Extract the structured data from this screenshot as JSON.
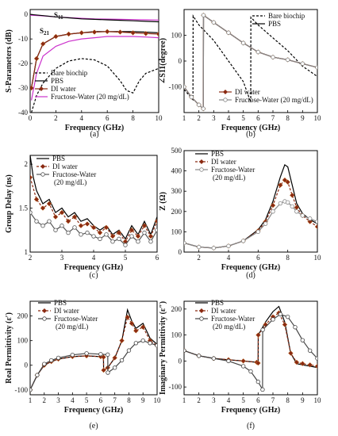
{
  "chart_data": [
    {
      "id": "a",
      "type": "line",
      "caption": "(a)",
      "xlabel": "Frequency (GHz)",
      "ylabel": "S-Parameters (dB)",
      "xlim": [
        0,
        10
      ],
      "ylim": [
        -40,
        2
      ],
      "xticks": [
        0,
        2,
        4,
        6,
        8,
        10
      ],
      "yticks": [
        0,
        -10,
        -20,
        -30,
        -40
      ],
      "annotations": [
        "S",
        "11",
        "S",
        "21"
      ],
      "series": [
        {
          "name": "Bare biochip",
          "color": "#000000",
          "dash": "3,2",
          "marker": "none",
          "x": [
            0.1,
            0.5,
            1,
            2,
            3,
            4,
            5,
            6,
            7,
            7.5,
            8,
            8.5,
            9,
            10
          ],
          "y": [
            -40,
            -33,
            -28,
            -22,
            -19,
            -18,
            -18.5,
            -21,
            -27,
            -31,
            -32,
            -27,
            -24,
            -22
          ]
        },
        {
          "name": "PBS",
          "color": "#000000",
          "dash": "",
          "marker": "none",
          "x": [
            0.1,
            0.5,
            1,
            2,
            3,
            4,
            5,
            6,
            7,
            8,
            9,
            10
          ],
          "y": [
            -30,
            -18,
            -12,
            -9,
            -8,
            -7.5,
            -7,
            -7,
            -7,
            -7,
            -7.2,
            -7.5
          ]
        },
        {
          "name": "DI water",
          "color": "#8b2a12",
          "dash": "",
          "marker": "diamond",
          "x": [
            0.1,
            0.5,
            1,
            2,
            3,
            4,
            5,
            6,
            7,
            8,
            9,
            10
          ],
          "y": [
            -30,
            -18,
            -12,
            -9,
            -8,
            -7.5,
            -7.2,
            -7,
            -7.2,
            -7.5,
            -7.8,
            -8
          ]
        },
        {
          "name": "Fructose-Water (20 mg/dL)",
          "color": "#cc33cc",
          "dash": "",
          "marker": "none",
          "x": [
            0.1,
            0.5,
            1,
            2,
            3,
            4,
            5,
            6,
            7,
            8,
            9,
            10
          ],
          "y": [
            -35,
            -24,
            -17,
            -13,
            -11,
            -10,
            -9.5,
            -9,
            -9,
            -9,
            -9.2,
            -9.5
          ]
        },
        {
          "name": "",
          "color": "#cc33cc",
          "dash": "",
          "marker": "none",
          "x": [
            0,
            1,
            2,
            3,
            4,
            5,
            6,
            7,
            8,
            9,
            10
          ],
          "y": [
            -0.3,
            -0.6,
            -1,
            -1.3,
            -1.6,
            -1.8,
            -1.9,
            -2,
            -2.1,
            -2.2,
            -2.3
          ]
        },
        {
          "name": "",
          "color": "#000000",
          "dash": "",
          "marker": "none",
          "x": [
            0,
            1,
            2,
            3,
            4,
            5,
            6,
            7,
            8,
            9,
            10
          ],
          "y": [
            0,
            -0.5,
            -1,
            -1.4,
            -1.8,
            -2,
            -2.2,
            -2.4,
            -2.6,
            -2.8,
            -3
          ]
        }
      ]
    },
    {
      "id": "b",
      "type": "line",
      "caption": "(b)",
      "xlabel": "Frequency (GHz)",
      "ylabel": "∠S11(degree)",
      "xlim": [
        1,
        10
      ],
      "ylim": [
        -200,
        200
      ],
      "xticks": [
        1,
        2,
        3,
        4,
        5,
        6,
        7,
        8,
        9,
        10
      ],
      "yticks": [
        -100,
        0,
        100
      ],
      "series": [
        {
          "name": "Bare biochip",
          "color": "#000000",
          "dash": "3,2",
          "marker": "none",
          "x": [
            1,
            1.6,
            1.61,
            2,
            3,
            4,
            5,
            5.5,
            5.51,
            6,
            7,
            8,
            9,
            10
          ],
          "y": [
            -110,
            -150,
            175,
            140,
            80,
            0,
            -80,
            -160,
            170,
            140,
            90,
            40,
            -20,
            -60
          ]
        },
        {
          "name": "PBS",
          "color": "#000000",
          "dash": "",
          "marker": "none",
          "x": [
            1,
            1.5,
            2,
            2.3,
            2.31,
            3,
            4,
            5,
            6,
            7,
            8,
            9,
            10
          ],
          "y": [
            -100,
            -140,
            -170,
            -185,
            178,
            150,
            110,
            70,
            35,
            15,
            5,
            -10,
            -25
          ]
        },
        {
          "name": "DI water",
          "color": "#8b2a12",
          "dash": "",
          "marker": "diamond",
          "x": [
            1,
            1.5,
            2,
            2.3,
            2.31,
            3,
            4,
            5,
            6,
            7,
            8,
            9,
            10
          ],
          "y": [
            -100,
            -140,
            -170,
            -185,
            178,
            150,
            110,
            70,
            35,
            15,
            5,
            -10,
            -25
          ]
        },
        {
          "name": "Fructose-Water (20 mg/dL)",
          "color": "#888888",
          "dash": "",
          "marker": "circle",
          "x": [
            1,
            1.5,
            2,
            2.3,
            2.31,
            3,
            4,
            5,
            6,
            7,
            8,
            9,
            10
          ],
          "y": [
            -100,
            -140,
            -170,
            -185,
            178,
            150,
            110,
            70,
            35,
            15,
            5,
            -10,
            -25
          ]
        }
      ]
    },
    {
      "id": "c",
      "type": "line",
      "caption": "(c)",
      "xlabel": "Frequency (GHz)",
      "ylabel": "Group Delay (ns)",
      "xlim": [
        2,
        6
      ],
      "ylim": [
        1.0,
        2.1
      ],
      "xticks": [
        2,
        3,
        4,
        5,
        6
      ],
      "yticks": [
        1.0,
        1.5,
        2.0
      ],
      "series": [
        {
          "name": "PBS",
          "color": "#000000",
          "dash": "",
          "marker": "none",
          "x": [
            2,
            2.1,
            2.2,
            2.4,
            2.6,
            2.8,
            3,
            3.2,
            3.4,
            3.6,
            3.8,
            4,
            4.2,
            4.4,
            4.6,
            4.8,
            5,
            5.2,
            5.4,
            5.6,
            5.8,
            6
          ],
          "y": [
            2.1,
            1.85,
            1.7,
            1.55,
            1.6,
            1.45,
            1.5,
            1.4,
            1.45,
            1.35,
            1.38,
            1.3,
            1.25,
            1.3,
            1.2,
            1.25,
            1.15,
            1.3,
            1.2,
            1.35,
            1.2,
            1.4
          ]
        },
        {
          "name": "DI water",
          "color": "#8b2a12",
          "dash": "3,2",
          "marker": "diamond",
          "x": [
            2,
            2.2,
            2.4,
            2.6,
            2.8,
            3,
            3.2,
            3.4,
            3.6,
            3.8,
            4,
            4.2,
            4.4,
            4.6,
            4.8,
            5,
            5.2,
            5.4,
            5.6,
            5.8,
            6
          ],
          "y": [
            1.85,
            1.6,
            1.5,
            1.55,
            1.4,
            1.45,
            1.35,
            1.4,
            1.3,
            1.32,
            1.28,
            1.22,
            1.28,
            1.18,
            1.22,
            1.12,
            1.25,
            1.18,
            1.3,
            1.18,
            1.35
          ]
        },
        {
          "name": "Fructose-Water (20 mg/dL)",
          "color": "#555555",
          "dash": "",
          "marker": "circle",
          "x": [
            2,
            2.2,
            2.4,
            2.6,
            2.8,
            3,
            3.2,
            3.4,
            3.6,
            3.8,
            4,
            4.2,
            4.4,
            4.6,
            4.8,
            5,
            5.2,
            5.4,
            5.6,
            5.8,
            6
          ],
          "y": [
            1.45,
            1.35,
            1.3,
            1.35,
            1.25,
            1.3,
            1.22,
            1.28,
            1.2,
            1.22,
            1.18,
            1.15,
            1.2,
            1.12,
            1.15,
            1.08,
            1.18,
            1.12,
            1.22,
            1.12,
            1.25
          ]
        }
      ]
    },
    {
      "id": "d",
      "type": "line",
      "caption": "(d)",
      "xlabel": "Frequency (GHz)",
      "ylabel": "Z (Ω)",
      "xlim": [
        1,
        10
      ],
      "ylim": [
        0,
        500
      ],
      "xticks": [
        2,
        4,
        6,
        8,
        10
      ],
      "yticks": [
        0,
        100,
        200,
        300,
        400,
        500
      ],
      "series": [
        {
          "name": "PBS",
          "color": "#000000",
          "dash": "",
          "marker": "none",
          "x": [
            1,
            2,
            3,
            4,
            5,
            6,
            6.5,
            7,
            7.5,
            7.8,
            8,
            8.3,
            8.6,
            9,
            9.5,
            10
          ],
          "y": [
            45,
            25,
            20,
            30,
            55,
            110,
            160,
            250,
            370,
            430,
            420,
            330,
            240,
            190,
            160,
            140
          ]
        },
        {
          "name": "DI water",
          "color": "#8b2a12",
          "dash": "3,2",
          "marker": "diamond",
          "x": [
            1,
            2,
            3,
            4,
            5,
            6,
            6.5,
            7,
            7.5,
            7.8,
            8,
            8.3,
            8.6,
            9,
            9.5,
            10
          ],
          "y": [
            45,
            25,
            20,
            30,
            55,
            105,
            150,
            230,
            330,
            355,
            345,
            280,
            220,
            180,
            150,
            125
          ]
        },
        {
          "name": "Fructose-Water (20 mg/dL)",
          "color": "#888888",
          "dash": "",
          "marker": "circle",
          "x": [
            1,
            2,
            3,
            4,
            5,
            6,
            6.5,
            7,
            7.5,
            7.8,
            8,
            8.3,
            8.6,
            9,
            9.5,
            10
          ],
          "y": [
            45,
            25,
            20,
            30,
            55,
            100,
            140,
            200,
            240,
            250,
            245,
            225,
            200,
            180,
            165,
            150
          ]
        }
      ]
    },
    {
      "id": "e",
      "type": "line",
      "caption": "(e)",
      "xlabel": "Frequency (GHz)",
      "ylabel": "Real Permittivity (ε′)",
      "xlim": [
        1,
        10
      ],
      "ylim": [
        -120,
        260
      ],
      "xticks": [
        1,
        2,
        3,
        4,
        5,
        6,
        7,
        8,
        9,
        10
      ],
      "yticks": [
        -100,
        0,
        100,
        200
      ],
      "series": [
        {
          "name": "PBS",
          "color": "#000000",
          "dash": "",
          "marker": "none",
          "x": [
            1,
            1.5,
            2,
            2.5,
            3,
            4,
            5,
            6,
            6.2,
            6.21,
            6.5,
            7,
            7.5,
            7.9,
            8.2,
            8.5,
            9,
            9.5,
            10
          ],
          "y": [
            -100,
            -40,
            0,
            15,
            25,
            35,
            38,
            35,
            33,
            -20,
            -10,
            30,
            100,
            225,
            180,
            150,
            170,
            110,
            85
          ]
        },
        {
          "name": "DI water",
          "color": "#8b2a12",
          "dash": "3,2",
          "marker": "diamond",
          "x": [
            1,
            1.5,
            2,
            2.5,
            3,
            4,
            5,
            6,
            6.2,
            6.21,
            6.5,
            7,
            7.5,
            7.9,
            8.2,
            8.5,
            9,
            9.5,
            10
          ],
          "y": [
            -100,
            -40,
            0,
            15,
            25,
            35,
            38,
            35,
            33,
            -20,
            -10,
            30,
            100,
            195,
            170,
            140,
            155,
            100,
            80
          ]
        },
        {
          "name": "Fructose-Water (20 mg/dL)",
          "color": "#444444",
          "dash": "",
          "marker": "circle",
          "x": [
            1,
            1.5,
            2,
            2.5,
            3,
            4,
            5,
            6,
            6.5,
            6.51,
            7,
            7.5,
            8,
            8.5,
            9,
            9.5,
            10
          ],
          "y": [
            -100,
            -40,
            5,
            20,
            30,
            42,
            48,
            45,
            43,
            -30,
            -10,
            20,
            60,
            90,
            100,
            90,
            80
          ]
        }
      ]
    },
    {
      "id": "f",
      "type": "line",
      "caption": "(f)",
      "xlabel": "Frequency (GHz)",
      "ylabel": "Imaginary Permittivity (ε″)",
      "xlim": [
        1,
        10
      ],
      "ylim": [
        -130,
        230
      ],
      "xticks": [
        1,
        2,
        3,
        4,
        5,
        6,
        7,
        8,
        9,
        10
      ],
      "yticks": [
        -100,
        0,
        100,
        200
      ],
      "series": [
        {
          "name": "PBS",
          "color": "#000000",
          "dash": "",
          "marker": "none",
          "x": [
            1,
            2,
            3,
            4,
            5,
            5.9,
            6.0,
            6.01,
            6.5,
            7,
            7.4,
            7.8,
            8.2,
            8.6,
            9,
            9.5,
            10
          ],
          "y": [
            40,
            20,
            10,
            5,
            0,
            -5,
            -8,
            100,
            150,
            190,
            210,
            150,
            30,
            -10,
            -15,
            -20,
            -25
          ]
        },
        {
          "name": "DI water",
          "color": "#8b2a12",
          "dash": "3,2",
          "marker": "diamond",
          "x": [
            1,
            2,
            3,
            4,
            5,
            5.9,
            6.0,
            6.01,
            6.5,
            7,
            7.4,
            7.8,
            8.2,
            8.6,
            9,
            9.5,
            10
          ],
          "y": [
            40,
            20,
            10,
            5,
            0,
            -5,
            -8,
            100,
            140,
            170,
            185,
            140,
            30,
            -5,
            -10,
            -15,
            -20
          ]
        },
        {
          "name": "Fructose-Water (20 mg/dL)",
          "color": "#444444",
          "dash": "",
          "marker": "circle",
          "x": [
            1,
            2,
            3,
            4,
            5,
            5.5,
            6.0,
            6.3,
            6.31,
            7,
            7.5,
            8,
            8.5,
            9,
            9.5,
            10
          ],
          "y": [
            40,
            20,
            10,
            0,
            -20,
            -40,
            -80,
            -110,
            120,
            160,
            180,
            170,
            130,
            80,
            40,
            10
          ]
        }
      ]
    }
  ]
}
